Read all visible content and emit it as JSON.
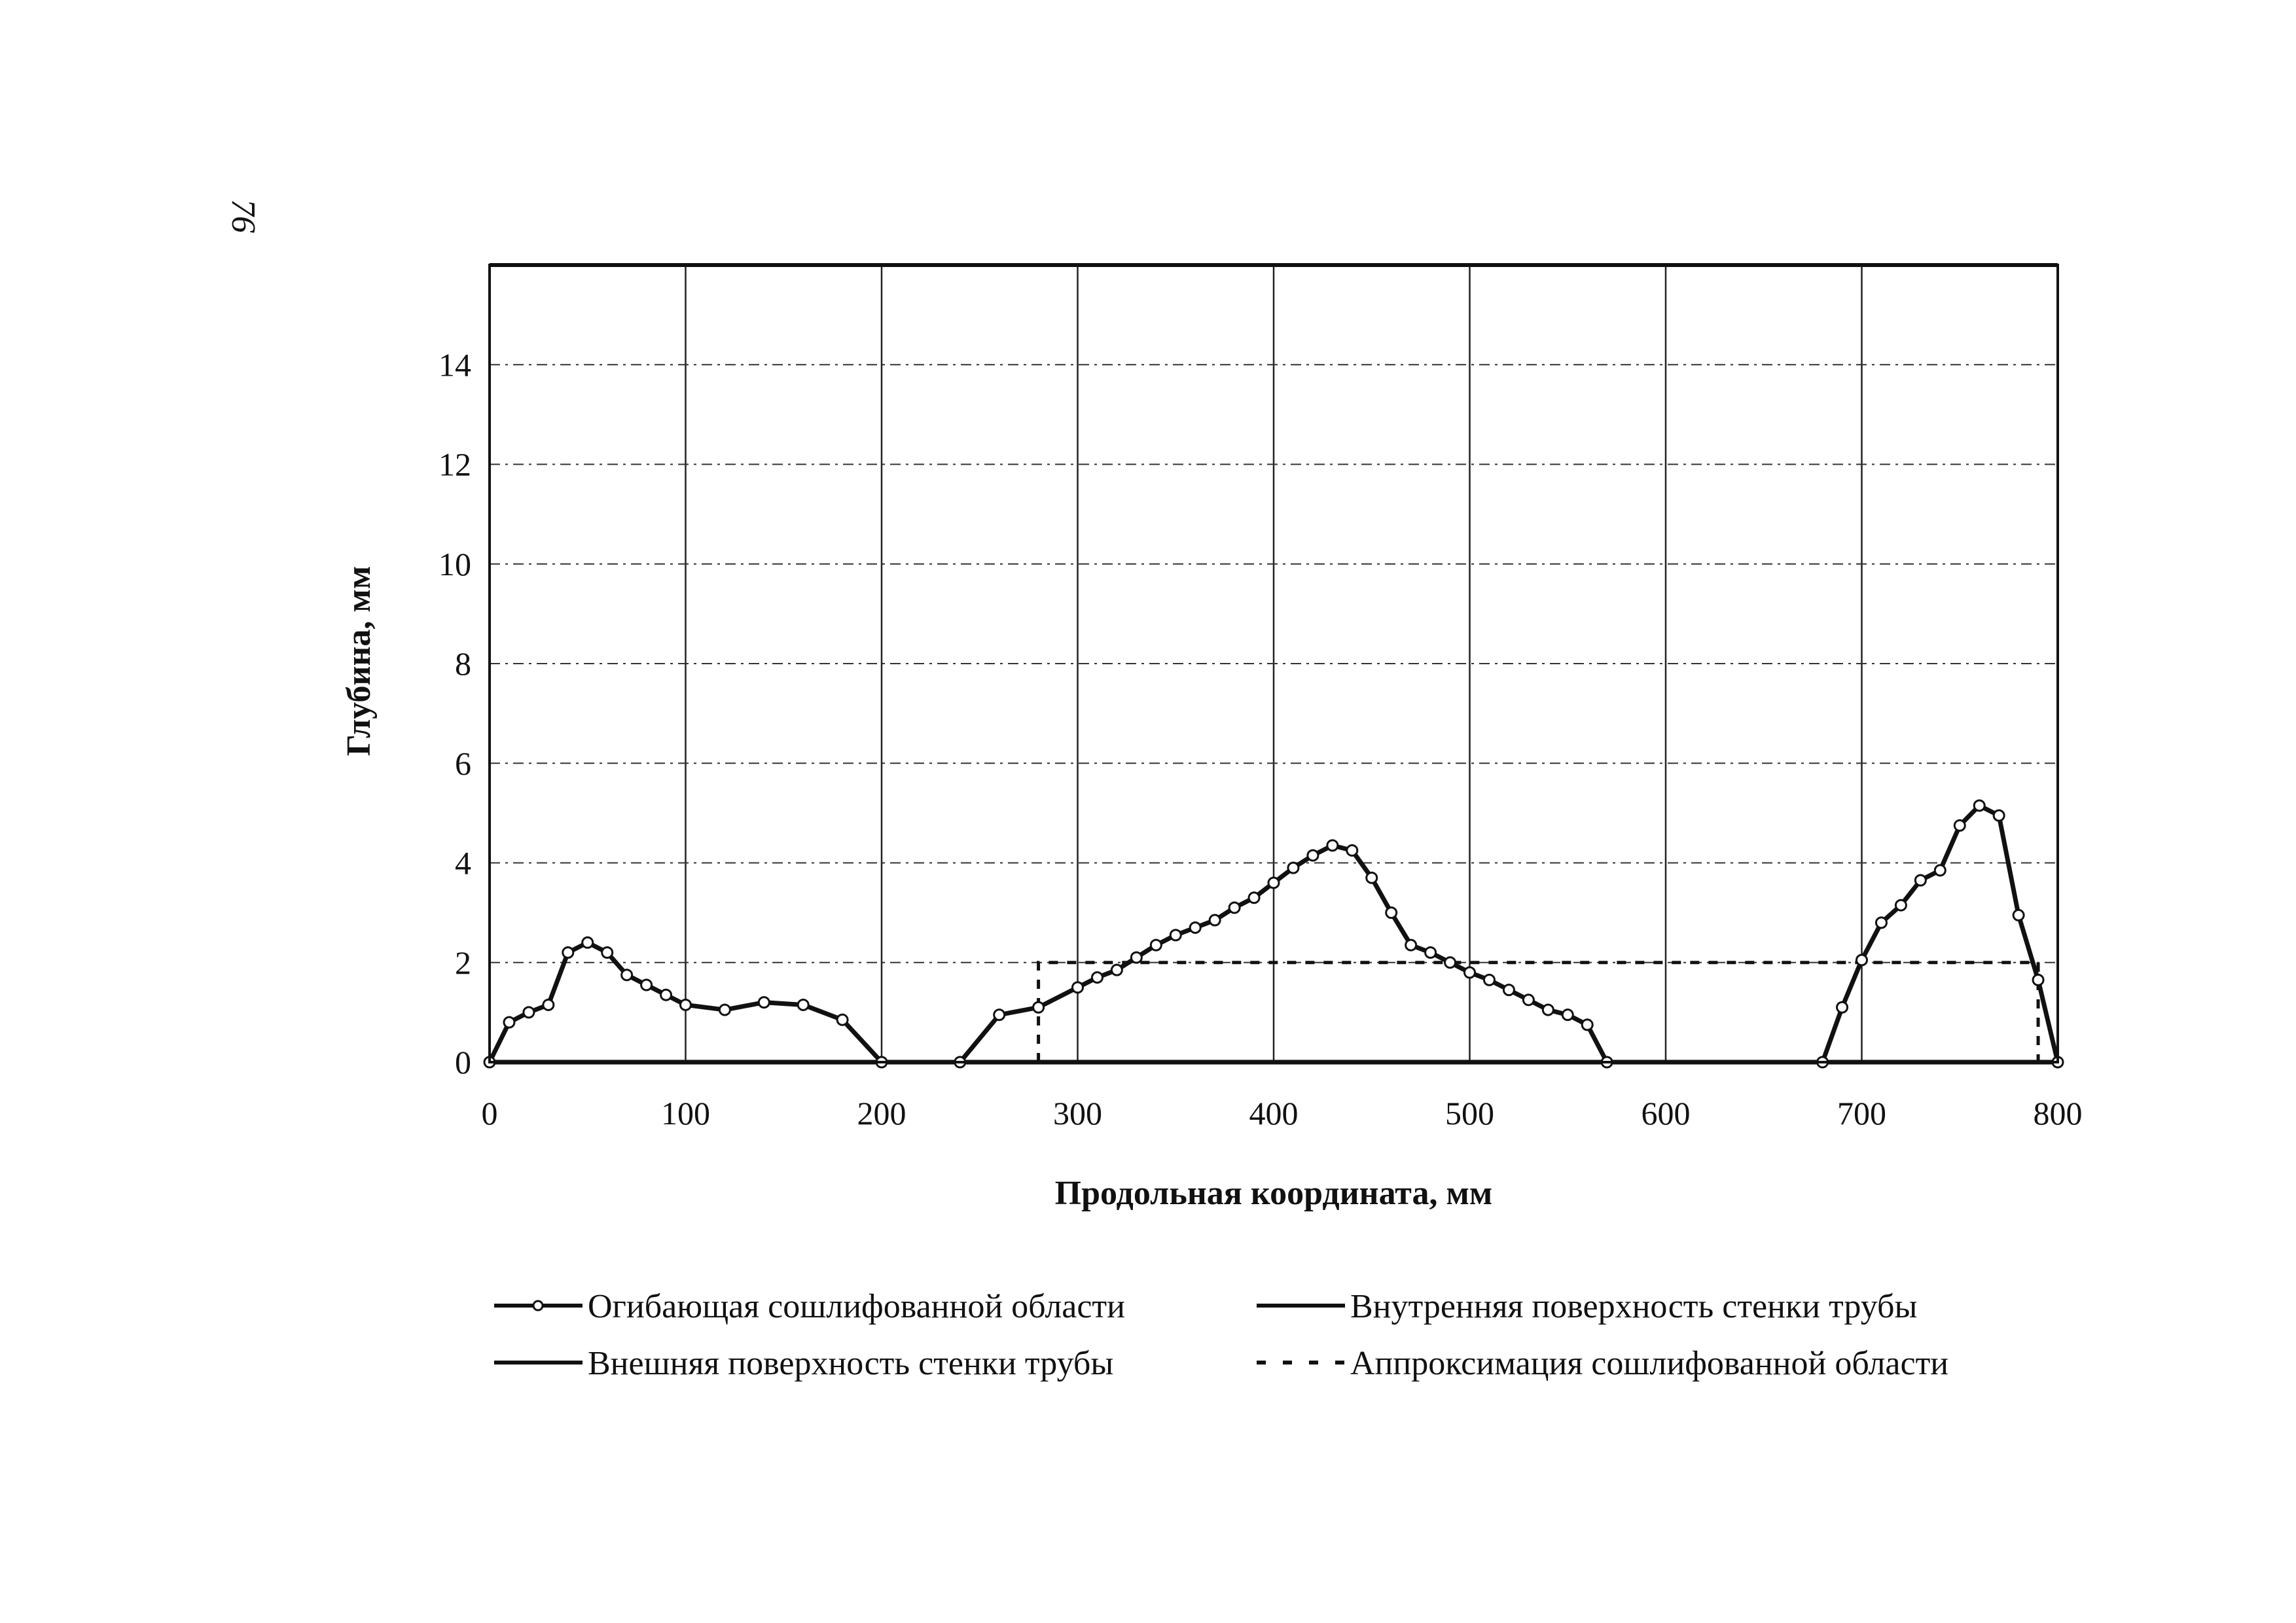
{
  "page_number": "76",
  "chart_data": {
    "type": "line",
    "xlabel": "Продольная координата, мм",
    "ylabel": "Глубина, мм",
    "xlim": [
      0,
      800
    ],
    "ylim": [
      0,
      16
    ],
    "x_ticks": [
      0,
      100,
      200,
      300,
      400,
      500,
      600,
      700,
      800
    ],
    "y_ticks": [
      0,
      2,
      4,
      6,
      8,
      10,
      12,
      14
    ],
    "x_tick_labels": [
      "0",
      "100",
      "200",
      "300",
      "400",
      "500",
      "600",
      "700",
      "800"
    ],
    "y_tick_labels": [
      "0",
      "2",
      "4",
      "6",
      "8",
      "10",
      "12",
      "14"
    ],
    "grid": {
      "vertical": "solid",
      "horizontal": "dash-dot"
    },
    "legend": {
      "placement": "bottom",
      "entries": [
        "Огибающая сошлифованной области",
        "Внутренняя поверхность стенки трубы",
        "Внешняя поверхность стенки трубы",
        "Аппроксимация сошлифованной области"
      ]
    },
    "series": [
      {
        "name": "Огибающая сошлифованной области",
        "style": "line-markers",
        "segments": [
          {
            "x": [
              0,
              10,
              20,
              30,
              40,
              50,
              60,
              70,
              80,
              90,
              100,
              120,
              140,
              160,
              180,
              200
            ],
            "y": [
              0,
              0.8,
              1.0,
              1.15,
              2.2,
              2.4,
              2.2,
              1.75,
              1.55,
              1.35,
              1.15,
              1.05,
              1.2,
              1.15,
              0.85,
              0
            ]
          },
          {
            "x": [
              240,
              260,
              280,
              300,
              310,
              320,
              330,
              340,
              350,
              360,
              370,
              380,
              390,
              400,
              410,
              420,
              430,
              440,
              450,
              460,
              470,
              480,
              490,
              500,
              510,
              520,
              530,
              540,
              550,
              560,
              570
            ],
            "y": [
              0,
              0.95,
              1.1,
              1.5,
              1.7,
              1.85,
              2.1,
              2.35,
              2.55,
              2.7,
              2.85,
              3.1,
              3.3,
              3.6,
              3.9,
              4.15,
              4.35,
              4.25,
              3.7,
              3.0,
              2.35,
              2.2,
              2.0,
              1.8,
              1.65,
              1.45,
              1.25,
              1.05,
              0.95,
              0.75,
              0
            ]
          },
          {
            "x": [
              680,
              690,
              700,
              710,
              720,
              730,
              740,
              750,
              760,
              770,
              780,
              790,
              800
            ],
            "y": [
              0,
              1.1,
              2.05,
              2.8,
              3.15,
              3.65,
              3.85,
              4.75,
              5.15,
              4.95,
              2.95,
              1.65,
              0
            ]
          }
        ]
      },
      {
        "name": "Внутренняя поверхность стенки трубы",
        "style": "solid",
        "x": [
          0,
          800
        ],
        "y": [
          16,
          16
        ]
      },
      {
        "name": "Внешняя поверхность стенки трубы",
        "style": "solid",
        "x": [
          0,
          800
        ],
        "y": [
          0,
          0
        ]
      },
      {
        "name": "Аппроксимация сошлифованной области",
        "style": "dashed",
        "x": [
          280,
          280,
          790,
          790
        ],
        "y": [
          0,
          2,
          2,
          0
        ]
      }
    ]
  }
}
